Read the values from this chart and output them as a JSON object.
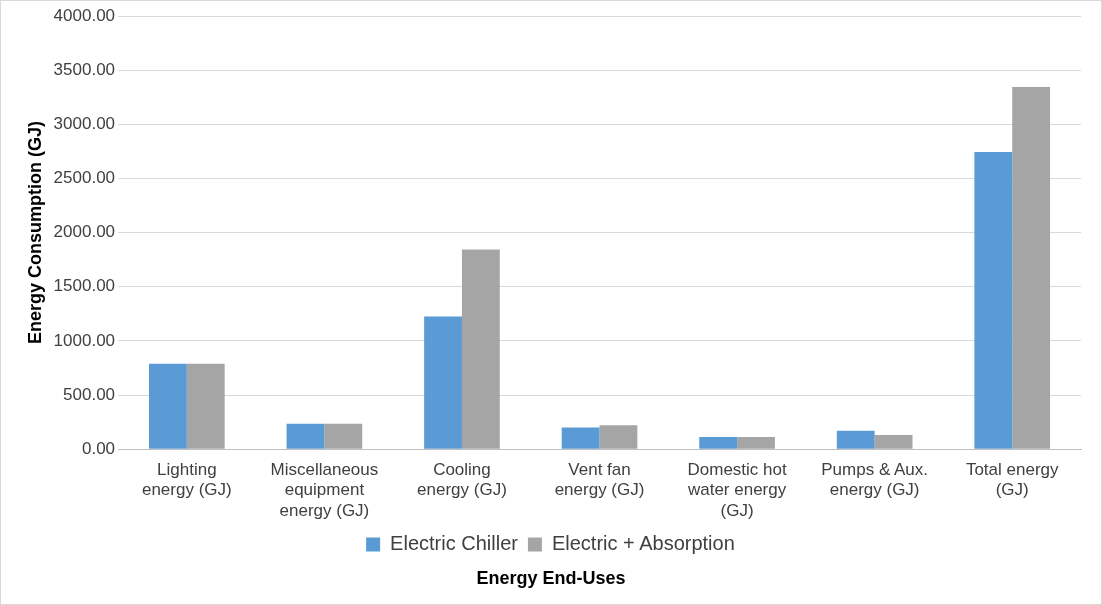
{
  "chart_data": {
    "type": "bar",
    "xlabel": "Energy End-Uses",
    "ylabel": "Energy Consumption (GJ)",
    "categories": [
      "Lighting energy (GJ)",
      "Miscellaneous equipment energy (GJ)",
      "Cooling energy (GJ)",
      "Vent fan energy (GJ)",
      "Domestic hot water energy (GJ)",
      "Pumps & Aux. energy (GJ)",
      "Total energy (GJ)"
    ],
    "series": [
      {
        "name": "Electric Chiller",
        "color": "#5b9bd5",
        "values": [
          790,
          235,
          1225,
          200,
          112,
          170,
          2745
        ]
      },
      {
        "name": "Electric + Absorption",
        "color": "#a5a5a5",
        "values": [
          790,
          235,
          1845,
          222,
          112,
          130,
          3345
        ]
      }
    ],
    "ylim": [
      0,
      4000
    ],
    "yticks": [
      {
        "value": 0,
        "label": "0.00"
      },
      {
        "value": 500,
        "label": "500.00"
      },
      {
        "value": 1000,
        "label": "1000.00"
      },
      {
        "value": 1500,
        "label": "1500.00"
      },
      {
        "value": 2000,
        "label": "2000.00"
      },
      {
        "value": 2500,
        "label": "2500.00"
      },
      {
        "value": 3000,
        "label": "3000.00"
      },
      {
        "value": 3500,
        "label": "3500.00"
      },
      {
        "value": 4000,
        "label": "4000.00"
      }
    ],
    "grid": "y",
    "legend": "bottom"
  }
}
